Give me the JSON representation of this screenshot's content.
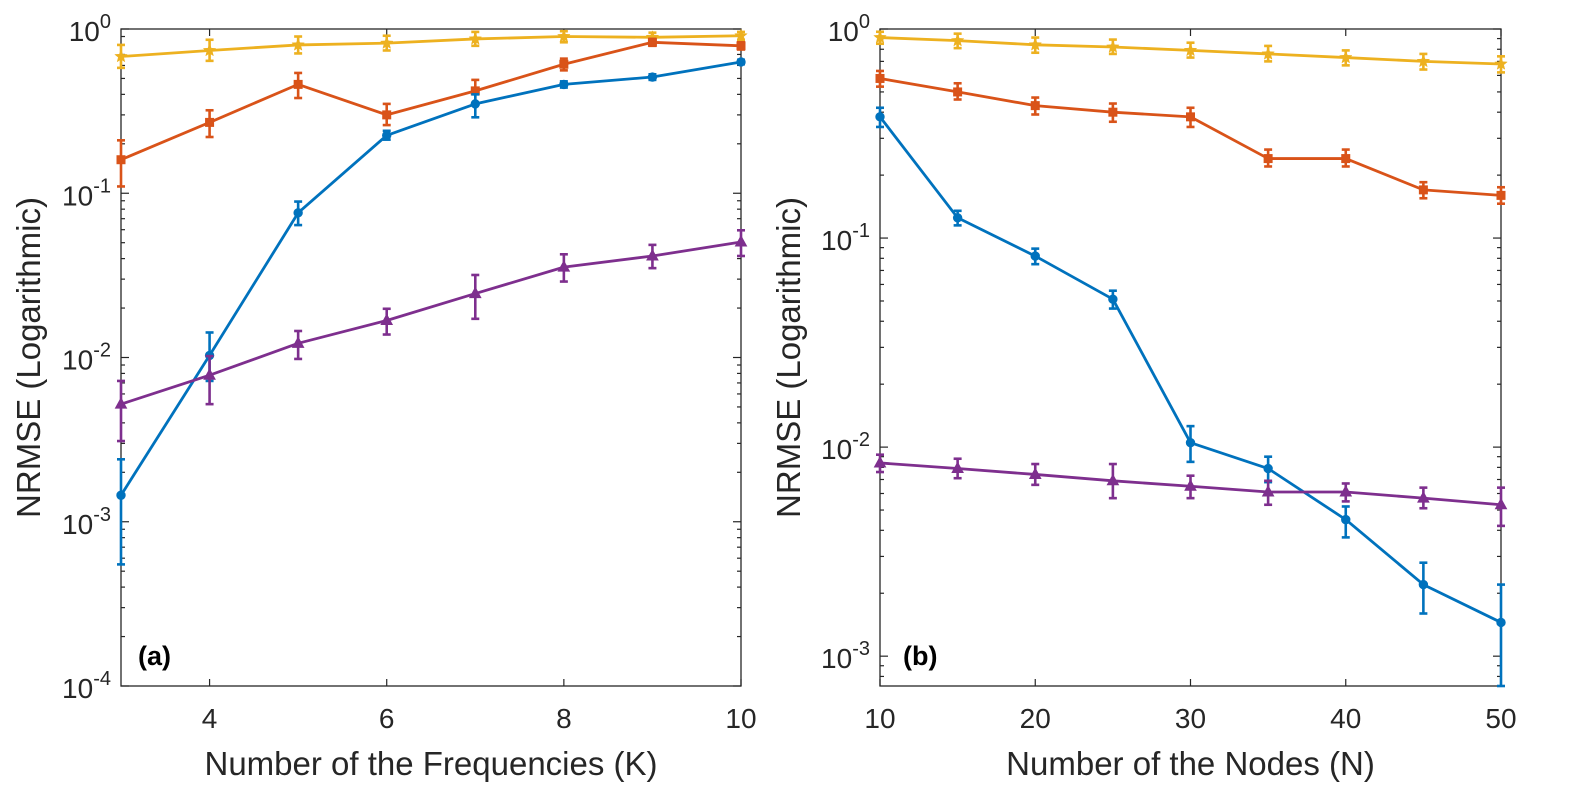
{
  "chart_data": [
    {
      "type": "line",
      "panel_label": "(a)",
      "xlabel": "Number of the Frequencies (K)",
      "ylabel": "NRMSE (Logarithmic)",
      "yscale": "log",
      "xlim": [
        3,
        10
      ],
      "ylim": [
        0.0001,
        1
      ],
      "x_ticks": [
        4,
        6,
        8,
        10
      ],
      "x_tick_labels": [
        "4",
        "6",
        "8",
        "10"
      ],
      "y_ticks": [
        0.0001,
        0.001,
        0.01,
        0.1,
        1
      ],
      "y_tick_labels": [
        {
          "base": "10",
          "exp": "-4"
        },
        {
          "base": "10",
          "exp": "-3"
        },
        {
          "base": "10",
          "exp": "-2"
        },
        {
          "base": "10",
          "exp": "-1"
        },
        {
          "base": "10",
          "exp": "0"
        }
      ],
      "x": [
        3,
        4,
        5,
        6,
        7,
        8,
        9,
        10
      ],
      "series": [
        {
          "name": "yellow",
          "color": "#EDB120",
          "marker": "star",
          "values": [
            0.68,
            0.74,
            0.8,
            0.82,
            0.87,
            0.9,
            0.89,
            0.91
          ],
          "err_low": [
            0.58,
            0.64,
            0.71,
            0.74,
            0.79,
            0.83,
            0.84,
            0.86
          ],
          "err_high": [
            0.8,
            0.86,
            0.9,
            0.91,
            0.96,
            0.97,
            0.95,
            0.96
          ]
        },
        {
          "name": "orange",
          "color": "#D95319",
          "marker": "square",
          "values": [
            0.16,
            0.27,
            0.46,
            0.3,
            0.42,
            0.61,
            0.83,
            0.79
          ],
          "err_low": [
            0.11,
            0.22,
            0.38,
            0.26,
            0.35,
            0.56,
            0.79,
            0.75
          ],
          "err_high": [
            0.21,
            0.32,
            0.54,
            0.35,
            0.49,
            0.66,
            0.87,
            0.83
          ]
        },
        {
          "name": "blue",
          "color": "#0072BD",
          "marker": "circle",
          "values": [
            0.00145,
            0.0103,
            0.076,
            0.225,
            0.35,
            0.46,
            0.51,
            0.63
          ],
          "err_low": [
            0.00055,
            0.0072,
            0.064,
            0.212,
            0.29,
            0.44,
            0.49,
            0.61
          ],
          "err_high": [
            0.0024,
            0.0142,
            0.089,
            0.24,
            0.4,
            0.48,
            0.53,
            0.65
          ]
        },
        {
          "name": "purple",
          "color": "#7E2F8E",
          "marker": "triangle",
          "values": [
            0.0052,
            0.0078,
            0.0122,
            0.0168,
            0.0245,
            0.0355,
            0.0415,
            0.0505
          ],
          "err_low": [
            0.0031,
            0.0052,
            0.0098,
            0.0138,
            0.0172,
            0.029,
            0.035,
            0.0415
          ],
          "err_high": [
            0.0072,
            0.0102,
            0.0145,
            0.0198,
            0.0318,
            0.0425,
            0.0485,
            0.0595
          ]
        }
      ]
    },
    {
      "type": "line",
      "panel_label": "(b)",
      "xlabel": "Number of the Nodes (N)",
      "ylabel": "NRMSE (Logarithmic)",
      "yscale": "log",
      "xlim": [
        10,
        50
      ],
      "ylim": [
        0.00072,
        1
      ],
      "x_ticks": [
        10,
        20,
        30,
        40,
        50
      ],
      "x_tick_labels": [
        "10",
        "20",
        "30",
        "40",
        "50"
      ],
      "y_ticks": [
        0.001,
        0.01,
        0.1,
        1
      ],
      "y_tick_labels": [
        {
          "base": "10",
          "exp": "-3"
        },
        {
          "base": "10",
          "exp": "-2"
        },
        {
          "base": "10",
          "exp": "-1"
        },
        {
          "base": "10",
          "exp": "0"
        }
      ],
      "x": [
        10,
        15,
        20,
        25,
        30,
        35,
        40,
        45,
        50
      ],
      "series": [
        {
          "name": "yellow",
          "color": "#EDB120",
          "marker": "star",
          "values": [
            0.91,
            0.88,
            0.84,
            0.82,
            0.79,
            0.76,
            0.73,
            0.7,
            0.68
          ],
          "err_low": [
            0.85,
            0.81,
            0.77,
            0.76,
            0.73,
            0.7,
            0.67,
            0.64,
            0.62
          ],
          "err_high": [
            0.97,
            0.95,
            0.91,
            0.89,
            0.86,
            0.83,
            0.79,
            0.76,
            0.74
          ]
        },
        {
          "name": "orange",
          "color": "#D95319",
          "marker": "square",
          "values": [
            0.58,
            0.5,
            0.43,
            0.4,
            0.38,
            0.24,
            0.24,
            0.17,
            0.16
          ],
          "err_low": [
            0.53,
            0.46,
            0.39,
            0.36,
            0.34,
            0.22,
            0.22,
            0.155,
            0.146
          ],
          "err_high": [
            0.63,
            0.55,
            0.47,
            0.44,
            0.42,
            0.265,
            0.265,
            0.185,
            0.175
          ]
        },
        {
          "name": "blue",
          "color": "#0072BD",
          "marker": "circle",
          "values": [
            0.38,
            0.125,
            0.082,
            0.051,
            0.0105,
            0.0079,
            0.0045,
            0.0022,
            0.00145
          ],
          "err_low": [
            0.34,
            0.115,
            0.075,
            0.046,
            0.0085,
            0.0068,
            0.0037,
            0.0016,
            0.00072
          ],
          "err_high": [
            0.42,
            0.135,
            0.089,
            0.056,
            0.0126,
            0.009,
            0.0052,
            0.0028,
            0.0022
          ]
        },
        {
          "name": "purple",
          "color": "#7E2F8E",
          "marker": "triangle",
          "values": [
            0.0084,
            0.0079,
            0.0074,
            0.0069,
            0.0065,
            0.0061,
            0.0061,
            0.0057,
            0.0053
          ],
          "err_low": [
            0.0076,
            0.0071,
            0.0066,
            0.0057,
            0.0057,
            0.0053,
            0.0055,
            0.0051,
            0.0042
          ],
          "err_high": [
            0.0092,
            0.0088,
            0.0083,
            0.0083,
            0.0073,
            0.0069,
            0.0067,
            0.0064,
            0.0064
          ]
        }
      ]
    }
  ]
}
